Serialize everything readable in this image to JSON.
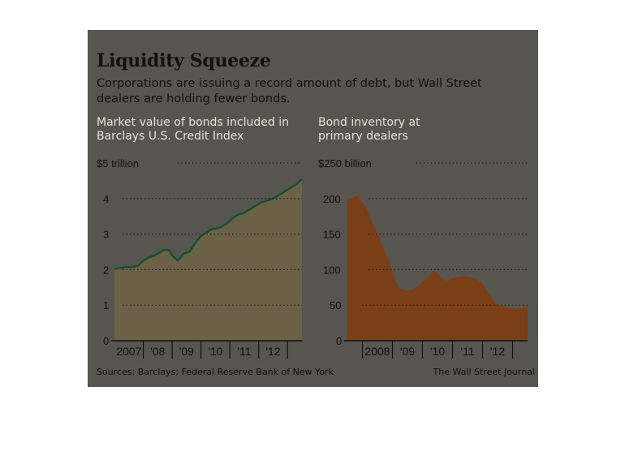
{
  "header": {
    "title": "Liquidity Squeeze",
    "subtitle": "Corporations are issuing a record amount of debt, but Wall Street dealers are holding fewer bonds."
  },
  "colors": {
    "panel": "#57554f",
    "left_fill": "#6b6147",
    "left_line": "#17502f",
    "right_fill": "#7b3f17",
    "grid": "#222222",
    "tick_text": "#111111"
  },
  "footer": {
    "sources": "Sources: Barclays; Federal Reserve Bank of New York",
    "credit": "The Wall Street Journal"
  },
  "chart_data": [
    {
      "type": "area",
      "label": "Market value of bonds included in Barclays U.S. Credit Index",
      "unit_label": "$5 trillion",
      "ylim": [
        0,
        5
      ],
      "yticks": [
        0,
        1,
        2,
        3,
        4,
        5
      ],
      "ytick_labels": [
        "0",
        "1",
        "2",
        "3",
        "4",
        "$5 trillion"
      ],
      "xlim": [
        2006.5,
        2013.0
      ],
      "xtick_positions": [
        2007,
        2008,
        2009,
        2010,
        2011,
        2012
      ],
      "xtick_labels": [
        "2007",
        "'08",
        "'09",
        "'10",
        "'11",
        "'12"
      ],
      "grid": true,
      "x": [
        2006.5,
        2006.7,
        2006.9,
        2007.1,
        2007.3,
        2007.5,
        2007.7,
        2007.9,
        2008.0,
        2008.2,
        2008.4,
        2008.5,
        2008.7,
        2008.9,
        2009.1,
        2009.3,
        2009.5,
        2009.7,
        2009.9,
        2010.0,
        2010.2,
        2010.4,
        2010.6,
        2010.8,
        2011.0,
        2011.2,
        2011.4,
        2011.6,
        2011.8,
        2012.0,
        2012.2,
        2012.4,
        2012.6,
        2012.8,
        2013.0
      ],
      "values": [
        2.02,
        2.05,
        2.07,
        2.07,
        2.1,
        2.25,
        2.35,
        2.4,
        2.45,
        2.55,
        2.55,
        2.4,
        2.25,
        2.45,
        2.5,
        2.75,
        2.95,
        3.05,
        3.15,
        3.15,
        3.2,
        3.3,
        3.45,
        3.55,
        3.6,
        3.7,
        3.8,
        3.9,
        3.95,
        4.0,
        4.1,
        4.2,
        4.3,
        4.4,
        4.55
      ]
    },
    {
      "type": "area",
      "label": "Bond inventory at primary dealers",
      "unit_label": "$250 billion",
      "ylim": [
        0,
        250
      ],
      "yticks": [
        0,
        50,
        100,
        150,
        200,
        250
      ],
      "ytick_labels": [
        "0",
        "50",
        "100",
        "150",
        "200",
        "$250 billion"
      ],
      "xlim": [
        2007.0,
        2013.0
      ],
      "xtick_positions": [
        2008,
        2009,
        2010,
        2011,
        2012
      ],
      "xtick_labels": [
        "2008",
        "'09",
        "'10",
        "'11",
        "'12"
      ],
      "grid": true,
      "x": [
        2007.0,
        2007.15,
        2007.35,
        2007.5,
        2007.65,
        2007.8,
        2007.95,
        2008.1,
        2008.25,
        2008.4,
        2008.55,
        2008.7,
        2008.85,
        2009.0,
        2009.2,
        2009.4,
        2009.55,
        2009.7,
        2009.85,
        2010.0,
        2010.15,
        2010.3,
        2010.5,
        2010.7,
        2010.9,
        2011.05,
        2011.2,
        2011.35,
        2011.5,
        2011.65,
        2011.8,
        2012.0,
        2012.2,
        2012.4,
        2012.6,
        2012.8,
        2013.0
      ],
      "values": [
        198,
        200,
        205,
        195,
        185,
        170,
        155,
        140,
        125,
        110,
        90,
        75,
        72,
        70,
        72,
        78,
        85,
        90,
        98,
        95,
        88,
        84,
        88,
        90,
        91,
        90,
        88,
        85,
        80,
        70,
        60,
        50,
        48,
        46,
        44,
        46,
        50
      ]
    }
  ]
}
